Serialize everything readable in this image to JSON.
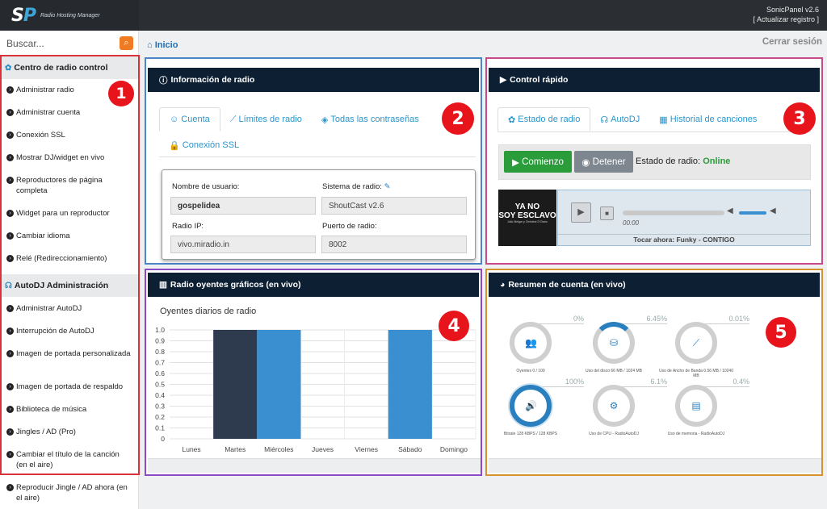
{
  "app": {
    "brand": "Radio Hosting Manager",
    "version": "SonicPanel v2.6",
    "update": "[ Actualizar registro ]"
  },
  "search": {
    "placeholder": "Buscar..."
  },
  "breadcrumb": "Inicio",
  "logout": "Cerrar sesión",
  "sidebar": {
    "section1": "Centro de radio control",
    "items1": [
      "Administrar radio",
      "Administrar cuenta",
      "Conexión SSL",
      "Mostrar DJ/widget en vivo",
      "Reproductores de página completa",
      "Widget para un reproductor",
      "Cambiar idioma",
      "Relé (Redireccionamiento)"
    ],
    "section2": "AutoDJ Administración",
    "items2": [
      "Administrar AutoDJ",
      "Interrupción de AutoDJ",
      "Imagen de portada personalizada",
      "Imagen de portada de respaldo",
      "Biblioteca de música",
      "Jingles / AD (Pro)",
      "Cambiar el título de la canción (en el aire)",
      "Reproducir Jingle / AD ahora (en el aire)"
    ]
  },
  "badges": [
    "1",
    "2",
    "3",
    "4",
    "5"
  ],
  "info": {
    "title": "Información de radio",
    "tabs": [
      "Cuenta",
      "Límites de radio",
      "Todas las contraseñas",
      "Conexión SSL"
    ],
    "user_label": "Nombre de usuario:",
    "user": "gospelidea",
    "system_label": "Sistema de radio:",
    "system": "ShoutCast v2.6",
    "ip_label": "Radio IP:",
    "ip": "vivo.miradio.in",
    "port_label": "Puerto de radio:",
    "port": "8002"
  },
  "control": {
    "title": "Control rápido",
    "tabs": [
      "Estado de radio",
      "AutoDJ",
      "Historial de canciones"
    ],
    "start": "Comienzo",
    "stop": "Detener",
    "status_label": "Estado de radio:",
    "status": "Online",
    "cover_line1": "YA NO",
    "cover_line2": "SOY ESCLAVO",
    "cover_small": "Julio Melgar y Christine D'Clario",
    "time": "00:00",
    "now_playing": "Tocar ahora: Funky - CONTIGO"
  },
  "chart_panel": {
    "title": "Radio oyentes gráficos (en vivo)",
    "subtitle": "Oyentes diarios de radio"
  },
  "chart_data": {
    "type": "bar",
    "categories": [
      "Lunes",
      "Martes",
      "Miércoles",
      "Jueves",
      "Viernes",
      "Sábado",
      "Domingo"
    ],
    "values": [
      0,
      1.0,
      1.0,
      0,
      0,
      1.0,
      0
    ],
    "colors": [
      "#2e3b4e",
      "#2e3b4e",
      "#3a8fd0",
      "#3a8fd0",
      "#3a8fd0",
      "#3a8fd0",
      "#3a8fd0"
    ],
    "yticks": [
      "1.0",
      "0.9",
      "0.8",
      "0.7",
      "0.6",
      "0.5",
      "0.4",
      "0.3",
      "0.2",
      "0.1",
      "0"
    ],
    "ylim": [
      0,
      1.0
    ]
  },
  "summary": {
    "title": "Resumen de cuenta (en vivo)",
    "rings": [
      {
        "pct": "0%",
        "label": "Oyentes 0 / 100",
        "icon": "users-icon"
      },
      {
        "pct": "6.45%",
        "label": "Uso del disco 66 MB / 1024 MB",
        "icon": "disk-icon"
      },
      {
        "pct": "0.01%",
        "label": "Uso de Ancho de Banda 0.56 MB / 10240 MB",
        "icon": "chart-icon"
      },
      {
        "pct": "100%",
        "label": "Bitrate 128 KBPS / 128 KBPS",
        "icon": "volume-icon"
      },
      {
        "pct": "6.1%",
        "label": "Uso de CPU - RadioAutoDJ",
        "icon": "gear-icon"
      },
      {
        "pct": "0.4%",
        "label": "Uso de memoria - RadioAutoDJ",
        "icon": "memory-icon"
      }
    ]
  }
}
